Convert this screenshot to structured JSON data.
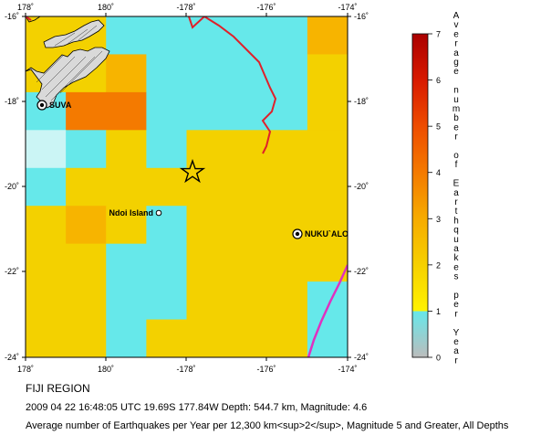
{
  "region_title": "FIJI REGION",
  "event_info": "2009 04 22 16:48:05 UTC 19.69S 177.84W Depth: 544.7 km, Magnitude: 4.6",
  "caption": "Average number of Earthquakes per Year per 12,300 km<sup>2</sup>, Magnitude 5 and Greater, All Depths",
  "map": {
    "x_tick_labels": [
      "178˚",
      "180˚",
      "-178˚",
      "-176˚",
      "-174˚"
    ],
    "y_tick_labels": [
      "-16˚",
      "-18˚",
      "-20˚",
      "-22˚",
      "-24˚"
    ],
    "grid_values": [
      [
        2,
        2,
        1,
        1,
        1,
        1,
        1,
        3
      ],
      [
        2,
        2,
        3,
        1,
        1,
        1,
        1,
        2
      ],
      [
        1,
        4,
        4,
        1,
        1,
        1,
        1,
        2
      ],
      [
        0.5,
        1,
        2,
        1,
        2,
        2,
        2,
        2
      ],
      [
        1,
        2,
        2,
        2,
        2,
        2,
        2,
        2
      ],
      [
        2,
        3,
        2,
        1,
        2,
        2,
        2,
        2
      ],
      [
        2,
        2,
        1,
        1,
        2,
        2,
        2,
        2
      ],
      [
        2,
        2,
        1,
        1,
        2,
        2,
        2,
        1
      ],
      [
        2,
        2,
        1,
        2,
        2,
        2,
        2,
        1
      ]
    ],
    "places": [
      {
        "name": "SUVA",
        "marker": "filled-star-dot"
      },
      {
        "name": "Ndoi Island",
        "marker": "open-dot"
      },
      {
        "name": "NUKU`ALOFA",
        "display": "NUKU`ALO",
        "marker": "filled-star-dot"
      }
    ],
    "epicenter_marker": "star-icon"
  },
  "legend": {
    "title_letters": [
      "A",
      "v",
      "e",
      "r",
      "a",
      "g",
      "e",
      "",
      "n",
      "u",
      "m",
      "b",
      "e",
      "r",
      "",
      "o",
      "f",
      "",
      "E",
      "a",
      "r",
      "t",
      "h",
      "q",
      "u",
      "a",
      "k",
      "e",
      "s",
      "",
      "p",
      "e",
      "r",
      "",
      "Y",
      "e",
      "a",
      "r"
    ],
    "ticks": [
      "0",
      "1",
      "2",
      "3",
      "4",
      "5",
      "6",
      "7"
    ],
    "colors": {
      "0": "#c0c0c0",
      "0.5": "#cbf5f5",
      "1": "#66e8ea",
      "2": "#f3d100",
      "3": "#f7b400",
      "4": "#f47a00",
      "5": "#ee4a00",
      "6": "#d81600",
      "7": "#b00000"
    }
  }
}
